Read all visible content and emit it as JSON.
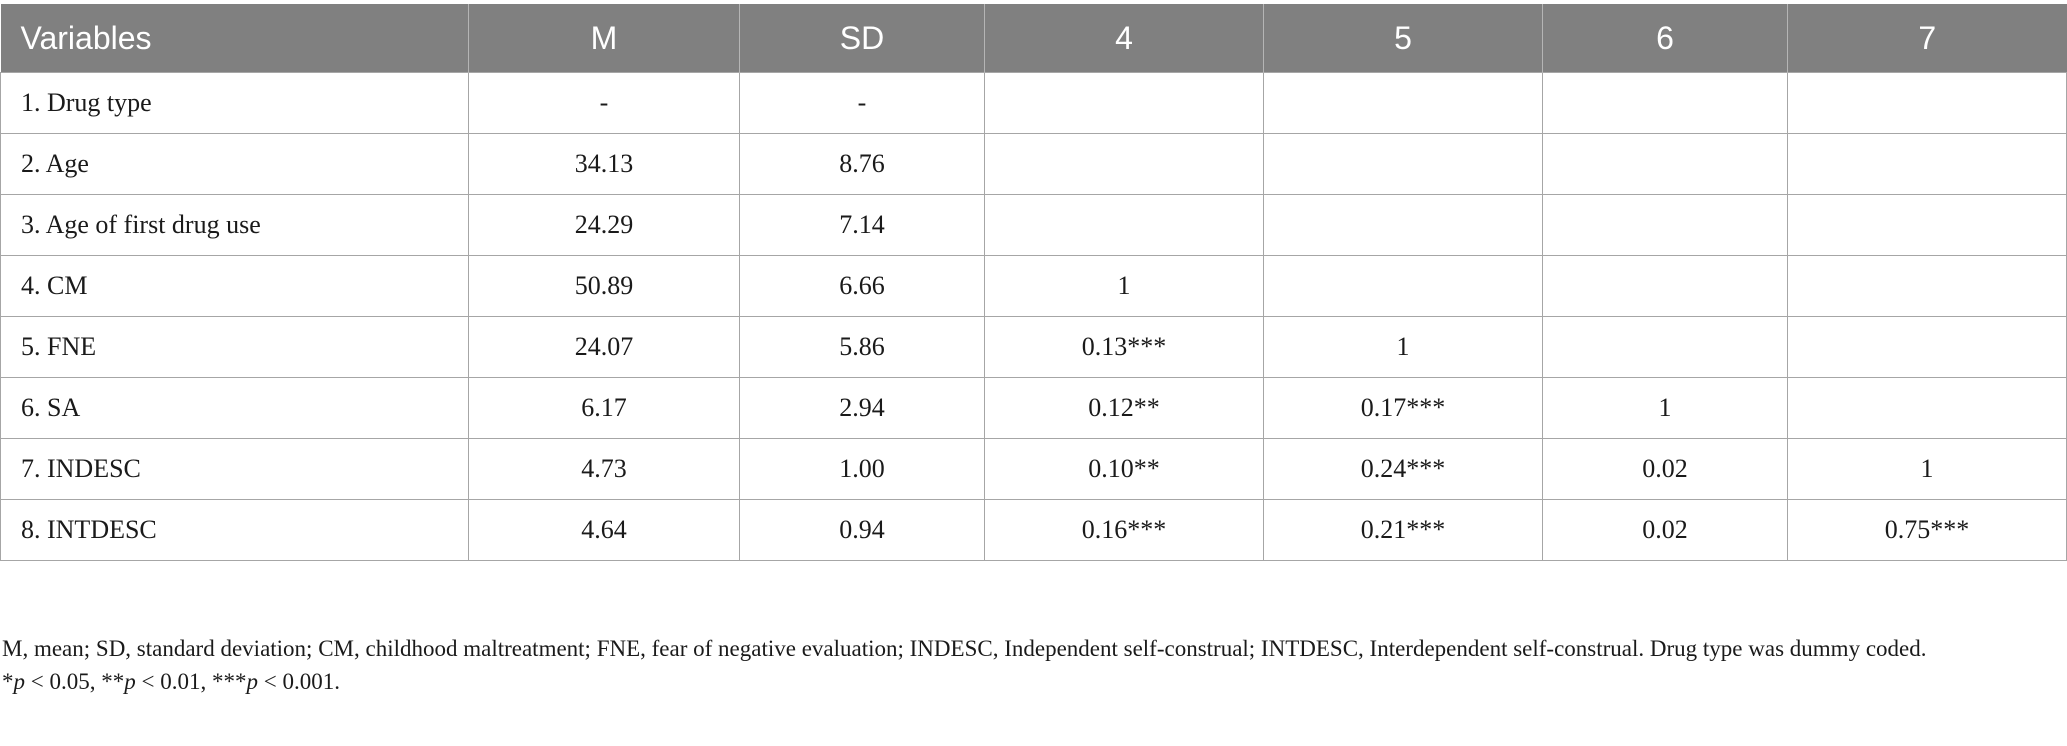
{
  "table": {
    "headers": [
      "Variables",
      "M",
      "SD",
      "4",
      "5",
      "6",
      "7"
    ],
    "rows": [
      [
        "1. Drug type",
        "-",
        "-",
        "",
        "",
        "",
        ""
      ],
      [
        "2. Age",
        "34.13",
        "8.76",
        "",
        "",
        "",
        ""
      ],
      [
        "3. Age of first drug use",
        "24.29",
        "7.14",
        "",
        "",
        "",
        ""
      ],
      [
        "4. CM",
        "50.89",
        "6.66",
        "1",
        "",
        "",
        ""
      ],
      [
        "5. FNE",
        "24.07",
        "5.86",
        "0.13***",
        "1",
        "",
        ""
      ],
      [
        "6. SA",
        "6.17",
        "2.94",
        "0.12**",
        "0.17***",
        "1",
        ""
      ],
      [
        "7. INDESC",
        "4.73",
        "1.00",
        "0.10**",
        "0.24***",
        "0.02",
        "1"
      ],
      [
        "8. INTDESC",
        "4.64",
        "0.94",
        "0.16***",
        "0.21***",
        "0.02",
        "0.75***"
      ]
    ]
  },
  "notes": {
    "abbreviations": "M, mean; SD, standard deviation; CM, childhood maltreatment; FNE, fear of negative evaluation; INDESC, Independent self-construal; INTDESC, Interdependent self-construal. Drug type was dummy coded.",
    "significance": {
      "p1_stars": "*",
      "p1_rest": " < 0.05, ",
      "p2_stars": "**",
      "p2_rest": " < 0.01, ",
      "p3_stars": "***",
      "p3_rest": " < 0.001.",
      "p_symbol": "p"
    }
  }
}
